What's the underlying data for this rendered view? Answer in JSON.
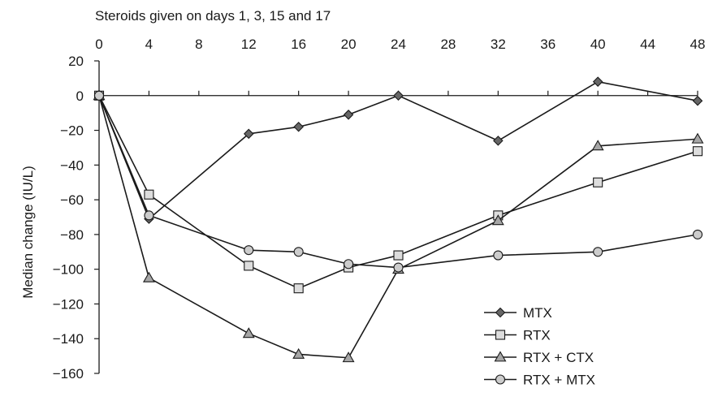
{
  "chart_data": {
    "type": "line",
    "title": "Steroids given on days 1, 3, 15 and 17",
    "xlabel": "",
    "ylabel": "Median change (IU/L)",
    "xlim": [
      0,
      48
    ],
    "ylim": [
      -160,
      20
    ],
    "x_ticks": [
      0,
      4,
      8,
      12,
      16,
      20,
      24,
      28,
      32,
      36,
      40,
      44,
      48
    ],
    "y_ticks": [
      20,
      0,
      -20,
      -40,
      -60,
      -80,
      -100,
      -120,
      -140,
      -160
    ],
    "legend_position": "bottom-right",
    "grid": false,
    "series": [
      {
        "name": "MTX",
        "marker": "diamond",
        "color": "#666666",
        "x": [
          0,
          4,
          12,
          16,
          20,
          24,
          32,
          40,
          48
        ],
        "y": [
          0,
          -71,
          -22,
          -18,
          -11,
          0,
          -26,
          8,
          -3
        ]
      },
      {
        "name": "RTX",
        "marker": "square",
        "color": "#dddddd",
        "x": [
          0,
          4,
          12,
          16,
          20,
          24,
          32,
          40,
          48
        ],
        "y": [
          0,
          -57,
          -98,
          -111,
          -99,
          -92,
          -69,
          -50,
          -32
        ]
      },
      {
        "name": "RTX + CTX",
        "marker": "triangle",
        "color": "#a6a6a6",
        "x": [
          0,
          4,
          12,
          16,
          20,
          24,
          32,
          40,
          48
        ],
        "y": [
          0,
          -105,
          -137,
          -149,
          -151,
          -100,
          -72,
          -29,
          -25
        ]
      },
      {
        "name": "RTX + MTX",
        "marker": "circle",
        "color": "#cccccc",
        "x": [
          0,
          4,
          12,
          16,
          20,
          24,
          32,
          40,
          48
        ],
        "y": [
          0,
          -69,
          -89,
          -90,
          -97,
          -99,
          -92,
          -90,
          -80
        ]
      }
    ]
  }
}
